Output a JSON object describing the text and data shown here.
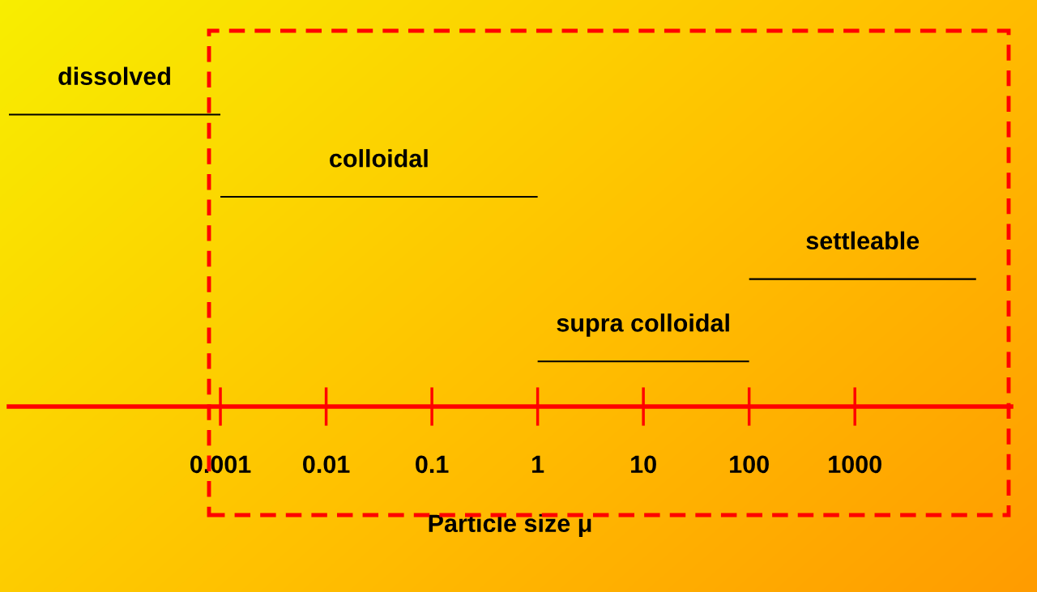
{
  "chart_data": {
    "type": "bar",
    "orientation": "horizontal",
    "log": "x",
    "categories": [
      null,
      null,
      null,
      null
    ],
    "base": [
      1e-05,
      0.001,
      100,
      1
    ],
    "values": [
      0.00099,
      0.999,
      13900,
      99
    ],
    "color": "#000000",
    "annotations": [
      "dissolved",
      "colloidal",
      "settleable",
      "supra colloidal"
    ],
    "xlim": [
      1e-05,
      30000
    ],
    "xticks": [
      0.001,
      0.01,
      0.1,
      1,
      10,
      100,
      1000
    ],
    "xlabel": "Particle size μ",
    "tick_labels": "x"
  }
}
